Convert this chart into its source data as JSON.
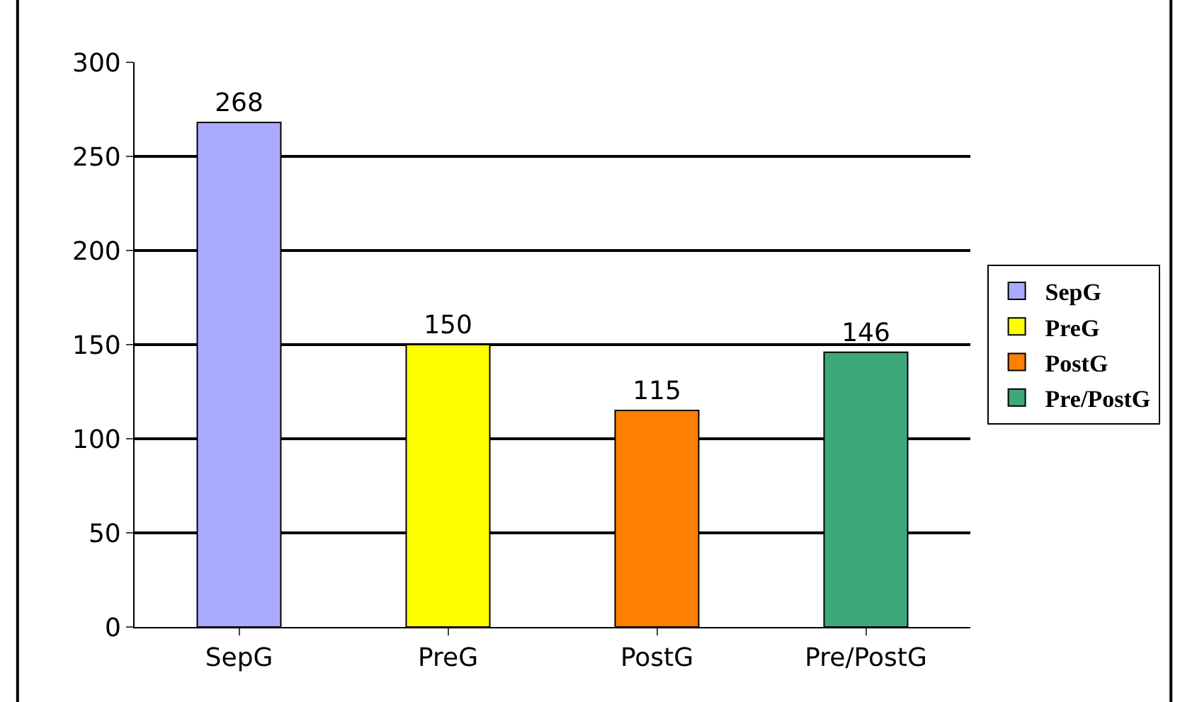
{
  "chart_data": {
    "type": "bar",
    "categories": [
      "SepG",
      "PreG",
      "PostG",
      "Pre/PostG"
    ],
    "series": [
      {
        "name": "SepG",
        "color": "#aaaaff",
        "values": [
          268,
          null,
          null,
          null
        ]
      },
      {
        "name": "PreG",
        "color": "#ffff00",
        "values": [
          null,
          150,
          null,
          null
        ]
      },
      {
        "name": "PostG",
        "color": "#ff7f00",
        "values": [
          null,
          null,
          115,
          null
        ]
      },
      {
        "name": "Pre/PostG",
        "color": "#3fa87a",
        "values": [
          null,
          null,
          null,
          146
        ]
      }
    ],
    "ylim": [
      0,
      300
    ],
    "yticks": [
      0,
      50,
      100,
      150,
      200,
      250,
      300
    ],
    "grid": "y",
    "legend": "right",
    "data_labels": true
  }
}
